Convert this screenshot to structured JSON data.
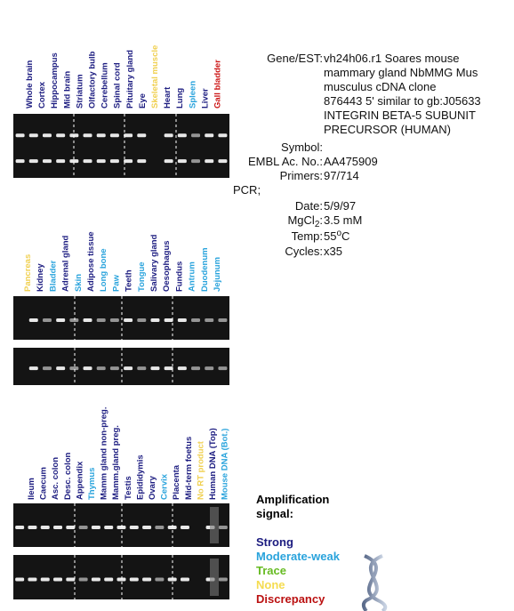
{
  "panels": [
    {
      "lanes": [
        {
          "label": "Whole brain",
          "color": "#1c1c80"
        },
        {
          "label": "Cortex",
          "color": "#1c1c80"
        },
        {
          "label": "Hippocampus",
          "color": "#1c1c80"
        },
        {
          "label": "Mid brain",
          "color": "#1c1c80"
        },
        {
          "label": "Striatum",
          "color": "#1c1c80"
        },
        {
          "label": "Olfactory bulb",
          "color": "#1c1c80"
        },
        {
          "label": "Cerebellum",
          "color": "#1c1c80"
        },
        {
          "label": "Spinal cord",
          "color": "#1c1c80"
        },
        {
          "label": "Pituitary gland",
          "color": "#1c1c80"
        },
        {
          "label": "Eye",
          "color": "#1c1c80"
        },
        {
          "label": "Skeletal muscle",
          "color": "#f0d050"
        },
        {
          "label": "Heart",
          "color": "#1c1c80"
        },
        {
          "label": "Lung",
          "color": "#1c1c80"
        },
        {
          "label": "Spleen",
          "color": "#29a3dc"
        },
        {
          "label": "Liver",
          "color": "#1c1c80"
        },
        {
          "label": "Gall bladder",
          "color": "#cc1515"
        }
      ]
    },
    {
      "lanes": [
        {
          "label": "Pancreas",
          "color": "#f0d050"
        },
        {
          "label": "Kidney",
          "color": "#1c1c80"
        },
        {
          "label": "Bladder",
          "color": "#29a3dc"
        },
        {
          "label": "Adrenal gland",
          "color": "#1c1c80"
        },
        {
          "label": "Skin",
          "color": "#29a3dc"
        },
        {
          "label": "Adipose tissue",
          "color": "#1c1c80"
        },
        {
          "label": "Long bone",
          "color": "#29a3dc"
        },
        {
          "label": "Paw",
          "color": "#29a3dc"
        },
        {
          "label": "Teeth",
          "color": "#1c1c80"
        },
        {
          "label": "Tongue",
          "color": "#29a3dc"
        },
        {
          "label": "Salivary gland",
          "color": "#1c1c80"
        },
        {
          "label": "Oesophagus",
          "color": "#1c1c80"
        },
        {
          "label": "Fundus",
          "color": "#1c1c80"
        },
        {
          "label": "Antrum",
          "color": "#29a3dc"
        },
        {
          "label": "Duodenum",
          "color": "#29a3dc"
        },
        {
          "label": "Jejunum",
          "color": "#29a3dc"
        }
      ]
    },
    {
      "lanes": [
        {
          "label": "Ileum",
          "color": "#1c1c80"
        },
        {
          "label": "Caecum",
          "color": "#1c1c80"
        },
        {
          "label": "Asc. colon",
          "color": "#1c1c80"
        },
        {
          "label": "Desc. colon",
          "color": "#1c1c80"
        },
        {
          "label": "Appendix",
          "color": "#1c1c80"
        },
        {
          "label": "Thymus",
          "color": "#29a3dc"
        },
        {
          "label": "Mamm gland non-preg.",
          "color": "#1c1c80"
        },
        {
          "label": "Mamm.gland preg.",
          "color": "#1c1c80"
        },
        {
          "label": "Testis",
          "color": "#1c1c80"
        },
        {
          "label": "Epididymis",
          "color": "#1c1c80"
        },
        {
          "label": "Ovary",
          "color": "#1c1c80"
        },
        {
          "label": "Cervix",
          "color": "#29a3dc"
        },
        {
          "label": "Placenta",
          "color": "#1c1c80"
        },
        {
          "label": "Mid-term foetus",
          "color": "#1c1c80"
        },
        {
          "label": "No RT product",
          "color": "#f0d050"
        },
        {
          "label": "Human DNA (Top)",
          "color": "#1c1c80"
        },
        {
          "label": "Mouse DNA (Bot.)",
          "color": "#29a3dc"
        }
      ]
    }
  ],
  "info": {
    "gene_label": "Gene/EST:",
    "gene_lines": [
      "vh24h06.r1 Soares mouse",
      "mammary gland NbMMG Mus",
      "musculus cDNA clone",
      " 876443 5' similar to gb:J05633",
      "INTEGRIN BETA-5 SUBUNIT",
      "PRECURSOR (HUMAN)"
    ],
    "symbol_label": "Symbol:",
    "embl_label": "EMBL Ac. No.:",
    "embl": "AA475909",
    "primers_label": "Primers:",
    "primers": "97/714",
    "pcr_label": "PCR;",
    "date_label": "Date:",
    "date": "5/9/97",
    "mg_label": "MgCl",
    "mg_sub": "2",
    "mg_colon": ":",
    "mg": "3.5 mM",
    "temp_label": "Temp:",
    "temp": "55",
    "temp_sup": "o",
    "temp_unit": "C",
    "cycles_label": "Cycles:",
    "cycles": "x35"
  },
  "legend": {
    "title": [
      "Amplification",
      "signal:"
    ],
    "items": [
      {
        "label": "Strong",
        "color": "#1c1c80"
      },
      {
        "label": "Moderate-weak",
        "color": "#29a3dc"
      },
      {
        "label": "Trace",
        "color": "#66bb22"
      },
      {
        "label": "None",
        "color": "#f5dc50"
      },
      {
        "label": "Discrepancy",
        "color": "#bb1111"
      }
    ]
  }
}
